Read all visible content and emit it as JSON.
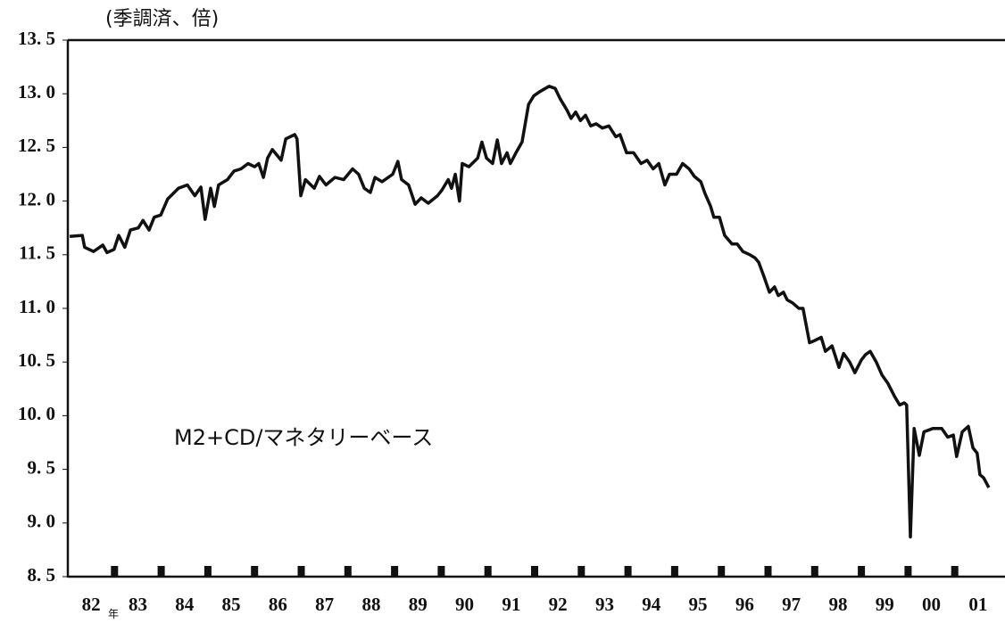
{
  "chart_data": {
    "type": "line",
    "title": "(季調済、倍)",
    "annotation": "M2+CD/マネタリーベース",
    "xlabel": "年",
    "xlim": [
      1982,
      2002
    ],
    "xticks": [
      {
        "value": 1982.5,
        "label": "82"
      },
      {
        "value": 1983.5,
        "label": "83"
      },
      {
        "value": 1984.5,
        "label": "84"
      },
      {
        "value": 1985.5,
        "label": "85"
      },
      {
        "value": 1986.5,
        "label": "86"
      },
      {
        "value": 1987.5,
        "label": "87"
      },
      {
        "value": 1988.5,
        "label": "88"
      },
      {
        "value": 1989.5,
        "label": "89"
      },
      {
        "value": 1990.5,
        "label": "90"
      },
      {
        "value": 1991.5,
        "label": "91"
      },
      {
        "value": 1992.5,
        "label": "92"
      },
      {
        "value": 1993.5,
        "label": "93"
      },
      {
        "value": 1994.5,
        "label": "94"
      },
      {
        "value": 1995.5,
        "label": "95"
      },
      {
        "value": 1996.5,
        "label": "96"
      },
      {
        "value": 1997.5,
        "label": "97"
      },
      {
        "value": 1998.5,
        "label": "98"
      },
      {
        "value": 1999.5,
        "label": "99"
      },
      {
        "value": 2000.5,
        "label": "00"
      },
      {
        "value": 2001.5,
        "label": "01"
      }
    ],
    "xtick_marks": [
      1983,
      1984,
      1985,
      1986,
      1987,
      1988,
      1989,
      1990,
      1991,
      1992,
      1993,
      1994,
      1995,
      1996,
      1997,
      1998,
      1999,
      2000,
      2001
    ],
    "ylim": [
      8.5,
      13.5
    ],
    "yticks": [
      {
        "value": 8.5,
        "label": "8. 5"
      },
      {
        "value": 9.0,
        "label": "9. 0"
      },
      {
        "value": 9.5,
        "label": "9. 5"
      },
      {
        "value": 10.0,
        "label": "10. 0"
      },
      {
        "value": 10.5,
        "label": "10. 5"
      },
      {
        "value": 11.0,
        "label": "11. 0"
      },
      {
        "value": 11.5,
        "label": "11. 5"
      },
      {
        "value": 12.0,
        "label": "12. 0"
      },
      {
        "value": 12.5,
        "label": "12. 5"
      },
      {
        "value": 13.0,
        "label": "13. 0"
      },
      {
        "value": 13.5,
        "label": "13. 5"
      }
    ],
    "grid": false,
    "x": [
      1982.04,
      1982.31,
      1982.36,
      1982.55,
      1982.75,
      1982.84,
      1982.99,
      1983.09,
      1983.22,
      1983.34,
      1983.51,
      1983.61,
      1983.74,
      1983.85,
      1983.99,
      1984.14,
      1984.28,
      1984.37,
      1984.56,
      1984.72,
      1984.85,
      1984.94,
      1985.06,
      1985.14,
      1985.23,
      1985.42,
      1985.56,
      1985.71,
      1985.86,
      1986.0,
      1986.09,
      1986.19,
      1986.28,
      1986.38,
      1986.57,
      1986.67,
      1986.86,
      1986.91,
      1986.99,
      1987.09,
      1987.28,
      1987.39,
      1987.53,
      1987.72,
      1987.91,
      1988.1,
      1988.23,
      1988.35,
      1988.48,
      1988.58,
      1988.73,
      1988.96,
      1989.07,
      1989.15,
      1989.3,
      1989.44,
      1989.57,
      1989.72,
      1989.92,
      1990.01,
      1990.15,
      1990.22,
      1990.3,
      1990.39,
      1990.45,
      1990.59,
      1990.78,
      1990.87,
      1990.97,
      1991.1,
      1991.2,
      1991.29,
      1991.41,
      1991.48,
      1991.6,
      1991.73,
      1991.87,
      1991.98,
      1992.11,
      1992.31,
      1992.44,
      1992.55,
      1992.69,
      1992.78,
      1992.88,
      1992.98,
      1993.09,
      1993.2,
      1993.32,
      1993.45,
      1993.59,
      1993.74,
      1993.83,
      1993.97,
      1994.12,
      1994.28,
      1994.41,
      1994.54,
      1994.66,
      1994.79,
      1994.89,
      1995.04,
      1995.17,
      1995.31,
      1995.42,
      1995.56,
      1995.65,
      1995.77,
      1995.84,
      1995.96,
      1996.07,
      1996.23,
      1996.34,
      1996.46,
      1996.61,
      1996.72,
      1996.8,
      1996.91,
      1997.03,
      1997.14,
      1997.22,
      1997.33,
      1997.41,
      1997.53,
      1997.66,
      1997.75,
      1997.89,
      1998.0,
      1998.14,
      1998.23,
      1998.37,
      1998.52,
      1998.62,
      1998.75,
      1998.86,
      1999.0,
      1999.09,
      1999.19,
      1999.32,
      1999.44,
      1999.57,
      1999.71,
      1999.82,
      1999.92,
      1999.97,
      2000.05,
      2000.13,
      2000.24,
      2000.34,
      2000.53,
      2000.72,
      2000.85,
      2000.97,
      2001.04,
      2001.16,
      2001.29,
      2001.39,
      2001.48,
      2001.54,
      2001.62,
      2001.73
    ],
    "series": [
      {
        "color": "#111111",
        "values": [
          11.67,
          11.68,
          11.57,
          11.53,
          11.59,
          11.52,
          11.55,
          11.68,
          11.57,
          11.73,
          11.75,
          11.82,
          11.73,
          11.85,
          11.87,
          12.02,
          12.08,
          12.12,
          12.15,
          12.05,
          12.13,
          11.83,
          12.12,
          11.95,
          12.15,
          12.2,
          12.28,
          12.3,
          12.35,
          12.32,
          12.35,
          12.22,
          12.4,
          12.48,
          12.38,
          12.58,
          12.62,
          12.58,
          12.05,
          12.2,
          12.12,
          12.23,
          12.15,
          12.22,
          12.2,
          12.3,
          12.25,
          12.12,
          12.08,
          12.22,
          12.18,
          12.25,
          12.37,
          12.2,
          12.15,
          11.97,
          12.03,
          11.98,
          12.05,
          12.1,
          12.2,
          12.12,
          12.25,
          12.0,
          12.35,
          12.32,
          12.4,
          12.55,
          12.4,
          12.35,
          12.57,
          12.35,
          12.45,
          12.35,
          12.45,
          12.55,
          12.9,
          12.98,
          13.02,
          13.07,
          13.05,
          12.95,
          12.85,
          12.77,
          12.83,
          12.75,
          12.8,
          12.7,
          12.72,
          12.68,
          12.7,
          12.6,
          12.62,
          12.45,
          12.45,
          12.35,
          12.38,
          12.3,
          12.35,
          12.15,
          12.25,
          12.25,
          12.35,
          12.3,
          12.23,
          12.18,
          12.07,
          11.95,
          11.85,
          11.85,
          11.68,
          11.6,
          11.6,
          11.53,
          11.5,
          11.47,
          11.43,
          11.3,
          11.15,
          11.2,
          11.12,
          11.15,
          11.08,
          11.05,
          11.0,
          11.0,
          10.68,
          10.7,
          10.73,
          10.6,
          10.65,
          10.45,
          10.58,
          10.5,
          10.4,
          10.52,
          10.57,
          10.6,
          10.5,
          10.38,
          10.3,
          10.18,
          10.1,
          10.12,
          10.1,
          8.87,
          9.88,
          9.63,
          9.85,
          9.88,
          9.88,
          9.8,
          9.82,
          9.62,
          9.85,
          9.9,
          9.7,
          9.65,
          9.45,
          9.42,
          9.33
        ]
      }
    ]
  }
}
